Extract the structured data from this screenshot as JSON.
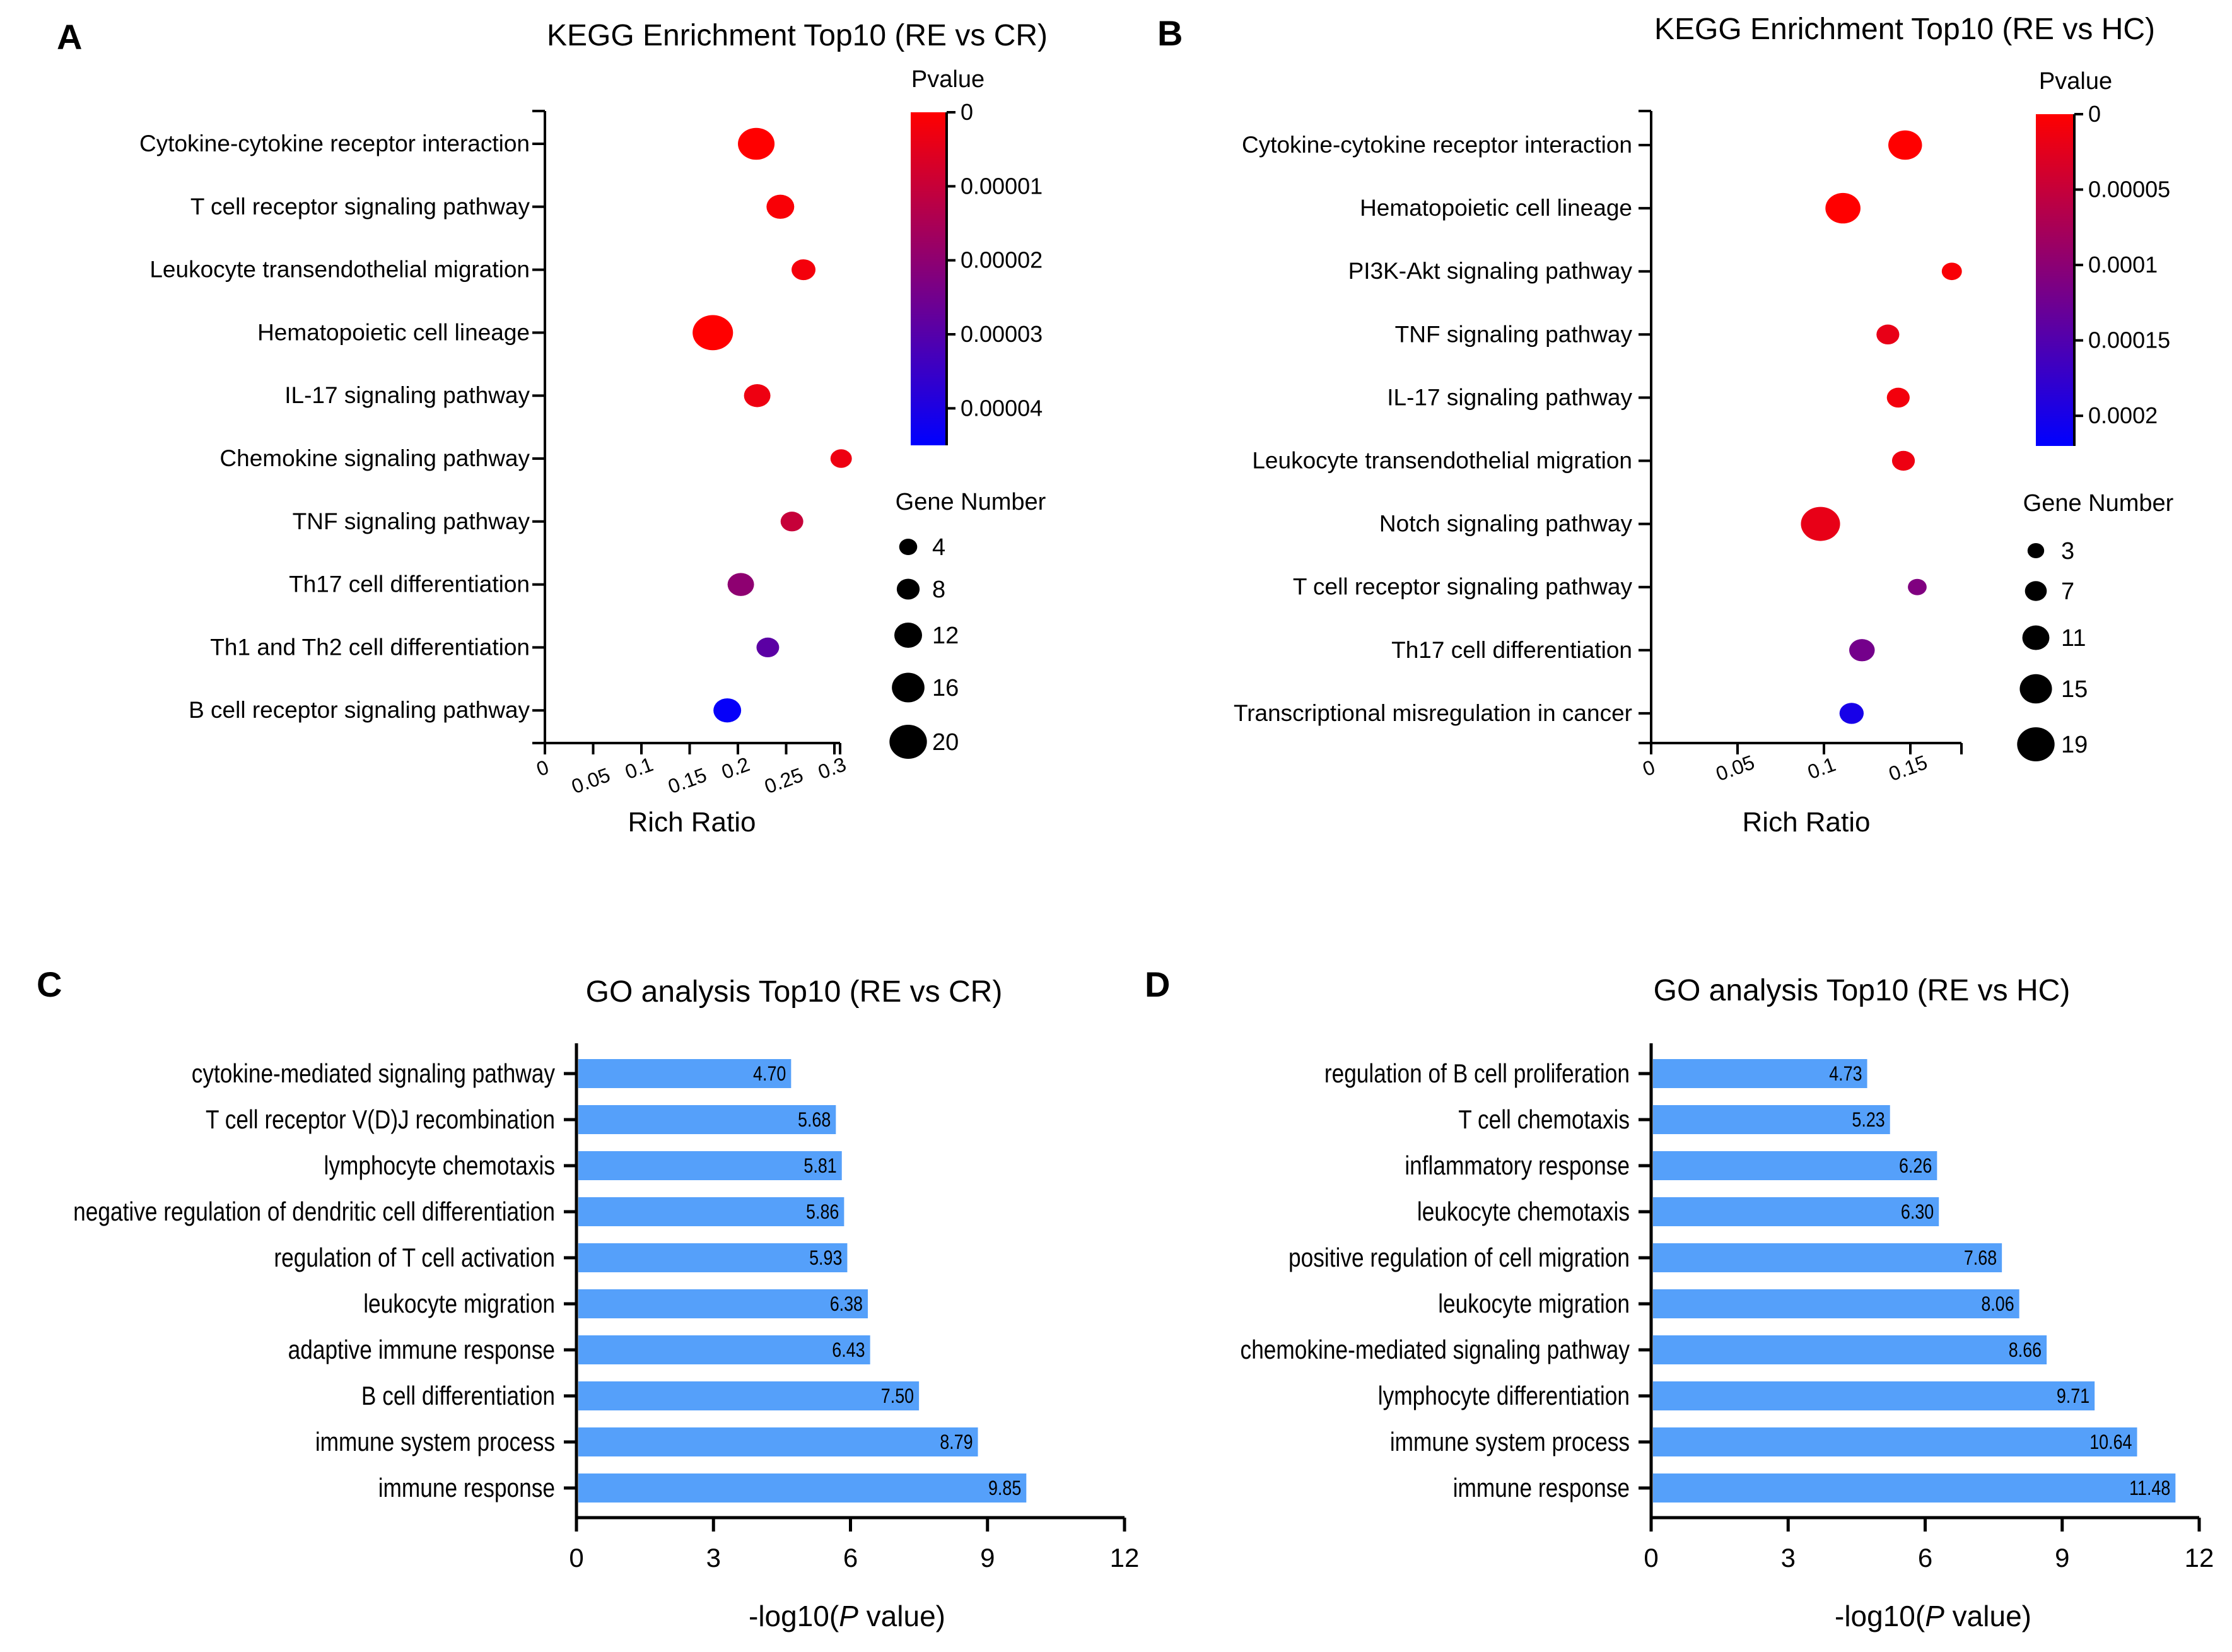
{
  "panels": {
    "A": {
      "letter": "A",
      "title": "KEGG Enrichment Top10 (RE vs CR)",
      "xlabel": "Rich Ratio",
      "colorbar_title": "Pvalue",
      "size_legend_title": "Gene Number"
    },
    "B": {
      "letter": "B",
      "title": "KEGG Enrichment Top10 (RE vs HC)",
      "xlabel": "Rich Ratio",
      "colorbar_title": "Pvalue",
      "size_legend_title": "Gene Number"
    },
    "C": {
      "letter": "C",
      "title": "GO analysis Top10 (RE vs CR)",
      "xlabel_prefix": "-log10(",
      "xlabel_italic": "P",
      "xlabel_suffix": " value)"
    },
    "D": {
      "letter": "D",
      "title": "GO analysis Top10 (RE vs HC)",
      "xlabel_prefix": "-log10(",
      "xlabel_italic": "P",
      "xlabel_suffix": " value)"
    }
  },
  "chart_data": [
    {
      "panel": "A",
      "type": "scatter",
      "title": "KEGG Enrichment Top10 (RE vs CR)",
      "xlabel": "Rich Ratio",
      "xlim": [
        0,
        0.31
      ],
      "xticks": [
        "0",
        "0.05",
        "0.1",
        "0.15",
        "0.2",
        "0.25",
        "0.3"
      ],
      "xtick_values": [
        0,
        0.05,
        0.1,
        0.15,
        0.2,
        0.25,
        0.3
      ],
      "categories": [
        "Cytokine-cytokine receptor interaction",
        "T cell receptor signaling pathway",
        "Leukocyte transendothelial migration",
        "Hematopoietic cell lineage",
        "IL-17 signaling pathway",
        "Chemokine signaling pathway",
        "TNF signaling pathway",
        "Th17 cell differentiation",
        "Th1 and Th2 cell differentiation",
        "B cell receptor signaling pathway"
      ],
      "rich_ratio": [
        0.219,
        0.244,
        0.268,
        0.174,
        0.22,
        0.307,
        0.256,
        0.203,
        0.231,
        0.189
      ],
      "gene_number": [
        18,
        11,
        8,
        21,
        10,
        6,
        7,
        10,
        7,
        11
      ],
      "pvalue": [
        0.0,
        1e-06,
        2e-06,
        0.0,
        3e-06,
        3e-06,
        1e-05,
        2e-05,
        2.9e-05,
        4.4e-05
      ],
      "colorbar": {
        "title": "Pvalue",
        "range": [
          0,
          4.5e-05
        ],
        "ticks": [
          "0",
          "0.00001",
          "0.00002",
          "0.00003",
          "0.00004"
        ],
        "tick_values": [
          0,
          1e-05,
          2e-05,
          3e-05,
          4e-05
        ],
        "low_color": "#ff0000",
        "high_color": "#0000ff"
      },
      "size_legend": {
        "title": "Gene Number",
        "values": [
          4,
          8,
          12,
          16,
          20
        ],
        "labels": [
          "4",
          "8",
          "12",
          "16",
          "20"
        ]
      }
    },
    {
      "panel": "B",
      "type": "scatter",
      "title": "KEGG Enrichment Top10 (RE vs HC)",
      "xlabel": "Rich Ratio",
      "xlim": [
        0,
        0.178
      ],
      "xticks": [
        "0",
        "0.05",
        "0.1",
        "0.15"
      ],
      "xtick_values": [
        0,
        0.05,
        0.1,
        0.15
      ],
      "categories": [
        "Cytokine-cytokine receptor interaction",
        "Hematopoietic cell lineage",
        "PI3K-Akt signaling pathway",
        "TNF signaling pathway",
        "IL-17 signaling pathway",
        "Leukocyte transendothelial migration",
        "Notch signaling pathway",
        "T cell receptor signaling pathway",
        "Th17 cell differentiation",
        "Transcriptional misregulation in cancer"
      ],
      "rich_ratio": [
        0.147,
        0.111,
        0.174,
        0.137,
        0.143,
        0.146,
        0.098,
        0.154,
        0.122,
        0.116
      ],
      "gene_number": [
        15,
        16,
        5,
        7,
        7,
        7,
        19,
        4,
        9,
        8
      ],
      "pvalue": [
        0.0,
        0.0,
        5e-06,
        2e-05,
        1e-05,
        1.5e-05,
        2e-05,
        0.00011,
        0.00012,
        0.0002
      ],
      "colorbar": {
        "title": "Pvalue",
        "range": [
          0,
          0.00022
        ],
        "ticks": [
          "0",
          "0.00005",
          "0.0001",
          "0.00015",
          "0.0002"
        ],
        "tick_values": [
          0,
          5e-05,
          0.0001,
          0.00015,
          0.0002
        ],
        "low_color": "#ff0000",
        "high_color": "#0000ff"
      },
      "size_legend": {
        "title": "Gene Number",
        "values": [
          3,
          7,
          11,
          15,
          19
        ],
        "labels": [
          "3",
          "7",
          "11",
          "15",
          "19"
        ]
      }
    },
    {
      "panel": "C",
      "type": "bar",
      "orientation": "horizontal",
      "title": "GO analysis Top10 (RE vs CR)",
      "xlabel": "-log10(P value)",
      "xlim": [
        0,
        12
      ],
      "xticks": [
        "0",
        "3",
        "6",
        "9",
        "12"
      ],
      "xtick_values": [
        0,
        3,
        6,
        9,
        12
      ],
      "bar_color": "#55a0fa",
      "categories": [
        "cytokine-mediated signaling pathway",
        "T cell receptor V(D)J recombination",
        "lymphocyte chemotaxis",
        "negative regulation of dendritic cell differentiation",
        "regulation of T cell activation",
        "leukocyte migration",
        "adaptive immune response",
        "B cell differentiation",
        "immune system process",
        "immune response"
      ],
      "values": [
        4.7,
        5.68,
        5.81,
        5.86,
        5.93,
        6.38,
        6.43,
        7.5,
        8.79,
        9.85
      ],
      "value_labels": [
        "4.70",
        "5.68",
        "5.81",
        "5.86",
        "5.93",
        "6.38",
        "6.43",
        "7.50",
        "8.79",
        "9.85"
      ]
    },
    {
      "panel": "D",
      "type": "bar",
      "orientation": "horizontal",
      "title": "GO analysis Top10 (RE vs HC)",
      "xlabel": "-log10(P value)",
      "xlim": [
        0,
        12
      ],
      "xticks": [
        "0",
        "3",
        "6",
        "9",
        "12"
      ],
      "xtick_values": [
        0,
        3,
        6,
        9,
        12
      ],
      "bar_color": "#55a0fa",
      "categories": [
        "regulation of B cell proliferation",
        "T cell chemotaxis",
        "inflammatory response",
        "leukocyte chemotaxis",
        "positive regulation of cell migration",
        "leukocyte migration",
        "chemokine-mediated signaling pathway",
        "lymphocyte differentiation",
        "immune system process",
        "immune response"
      ],
      "values": [
        4.73,
        5.23,
        6.26,
        6.3,
        7.68,
        8.06,
        8.66,
        9.71,
        10.64,
        11.48
      ],
      "value_labels": [
        "4.73",
        "5.23",
        "6.26",
        "6.30",
        "7.68",
        "8.06",
        "8.66",
        "9.71",
        "10.64",
        "11.48"
      ]
    }
  ]
}
